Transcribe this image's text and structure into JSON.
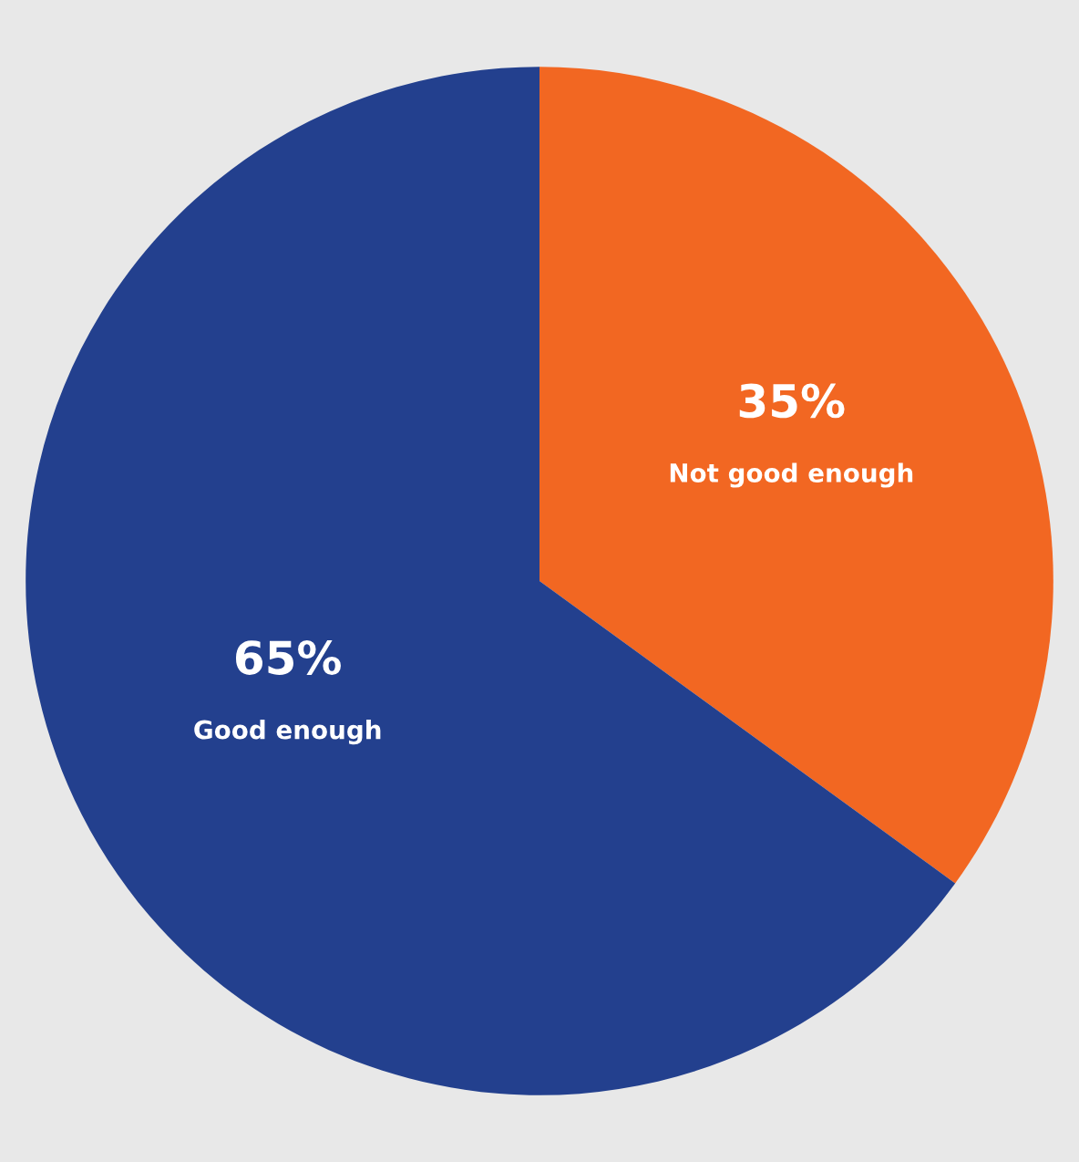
{
  "chart_data": {
    "type": "pie",
    "categories": [
      "Not good enough",
      "Good enough"
    ],
    "values": [
      35,
      65
    ],
    "colors": [
      "#f26722",
      "#23408e"
    ],
    "value_labels": [
      "35%",
      "65%"
    ]
  }
}
